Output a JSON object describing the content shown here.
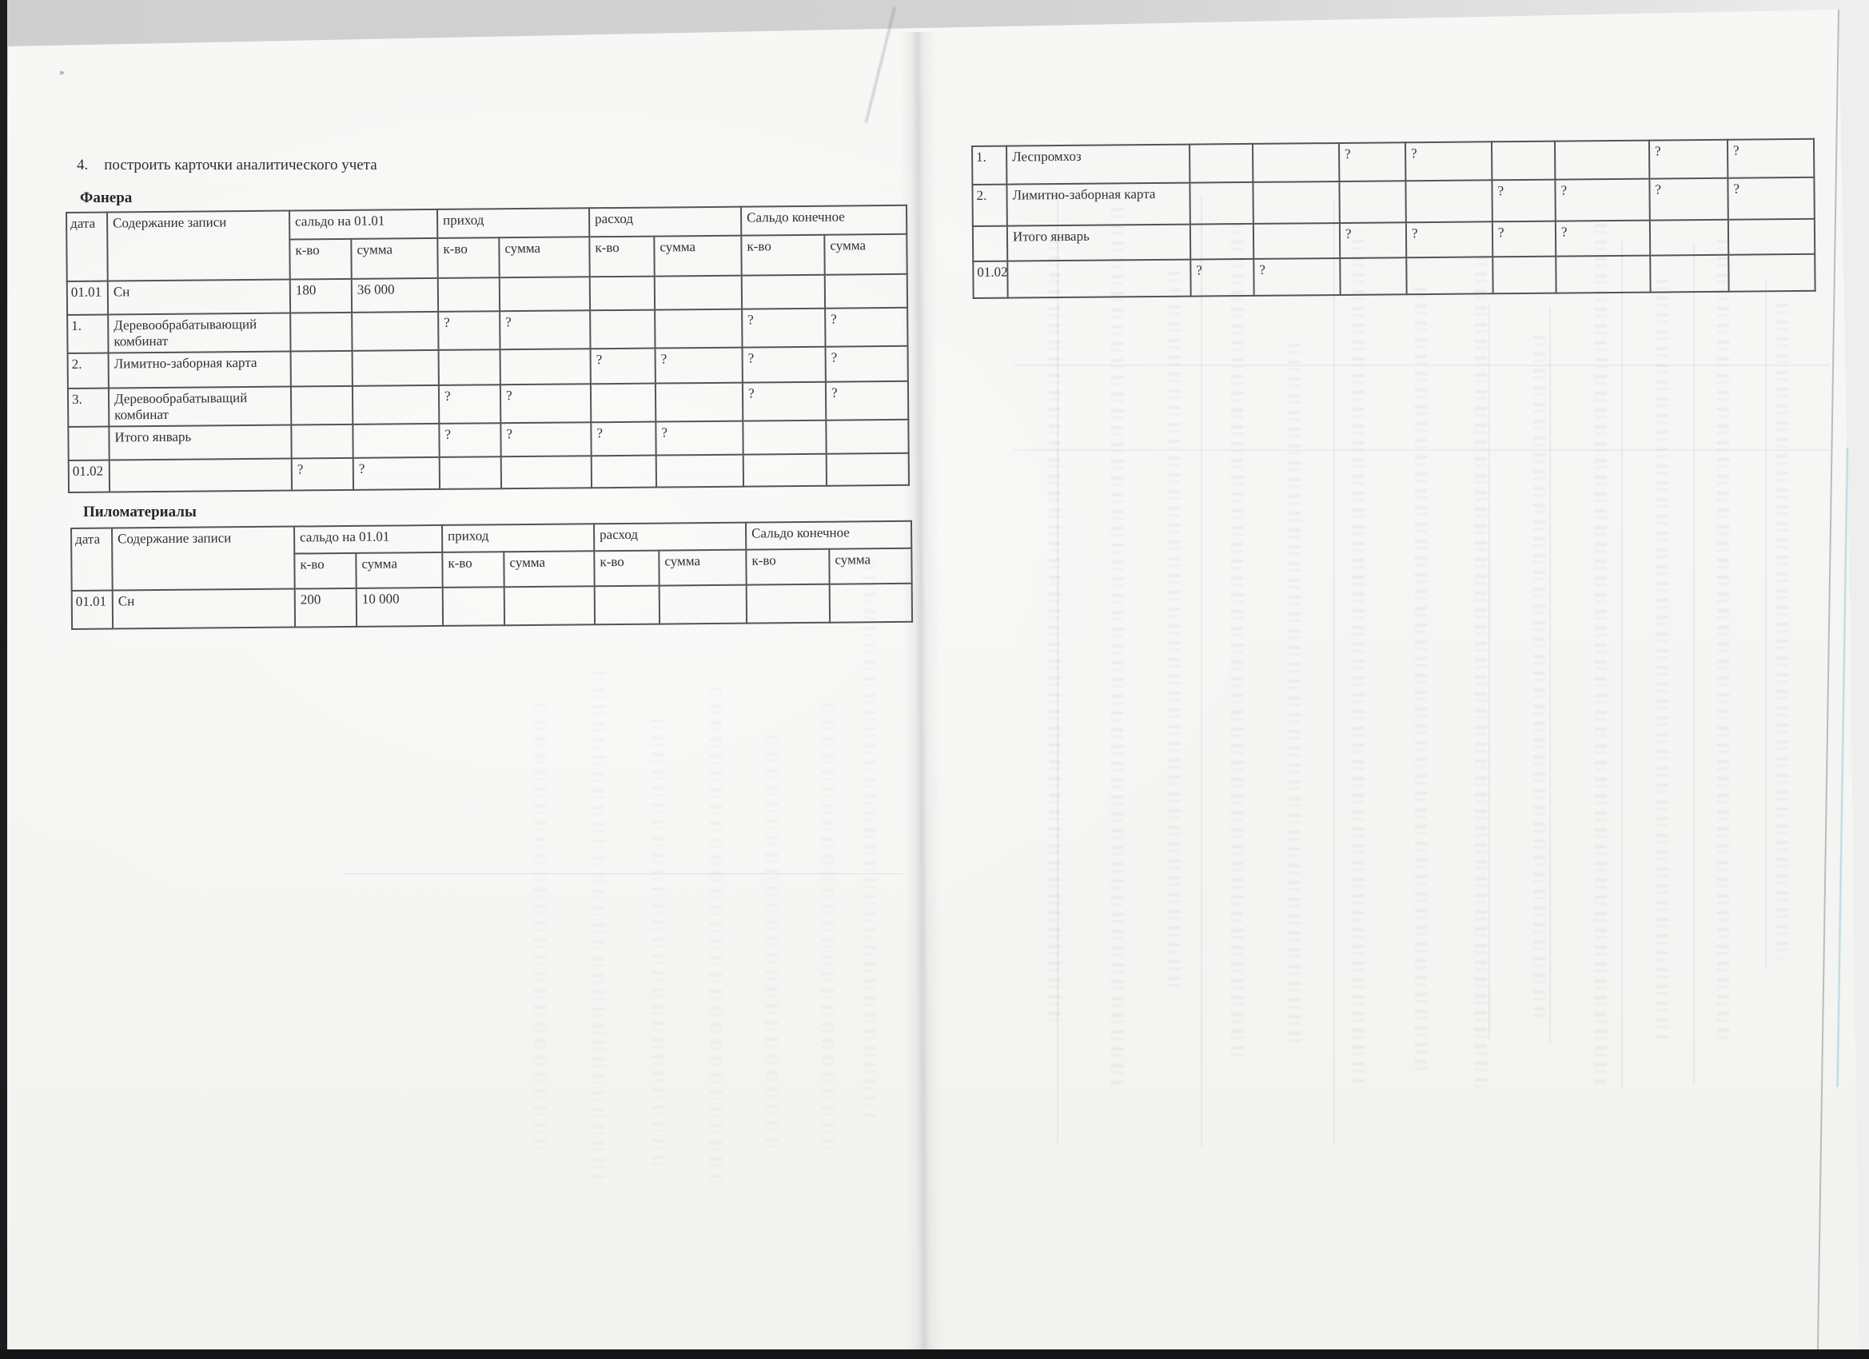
{
  "page": {
    "title_number": "4.",
    "title_text": "построить карточки аналитического учета",
    "stray_mark": "»"
  },
  "shared_headers": {
    "date": "дата",
    "content": "Содержание записи",
    "opening_balance": "сальдо на 01.01",
    "income": "приход",
    "expense": "расход",
    "closing_balance": "Сальдо конечное",
    "qty": "к-во",
    "sum": "сумма"
  },
  "tables": [
    {
      "id": "fanera",
      "label": "Фанера",
      "has_header": true,
      "rows": [
        [
          "01.01",
          "Сн",
          "180",
          "36 000",
          "",
          "",
          "",
          "",
          "",
          ""
        ],
        [
          "1.",
          "Деревообрабатывающий комбинат",
          "",
          "",
          "?",
          "?",
          "",
          "",
          "?",
          "?"
        ],
        [
          "2.",
          "Лимитно-заборная карта",
          "",
          "",
          "",
          "",
          "?",
          "?",
          "?",
          "?"
        ],
        [
          "3.",
          "Деревообрабатыващий комбинат",
          "",
          "",
          "?",
          "?",
          "",
          "",
          "?",
          "?"
        ],
        [
          "",
          "Итого январь",
          "",
          "",
          "?",
          "?",
          "?",
          "?",
          "",
          ""
        ],
        [
          "01.02",
          "",
          "?",
          "?",
          "",
          "",
          "",
          "",
          "",
          ""
        ]
      ]
    },
    {
      "id": "pilomaterialy",
      "label": "Пиломатериалы",
      "has_header": true,
      "rows": [
        [
          "01.01",
          "Сн",
          "200",
          "10 000",
          "",
          "",
          "",
          "",
          "",
          ""
        ]
      ]
    },
    {
      "id": "continuation-card",
      "label": "",
      "has_header": false,
      "rows": [
        [
          "1.",
          "Леспромхоз",
          "",
          "",
          "?",
          "?",
          "",
          "",
          "?",
          "?"
        ],
        [
          "2.",
          "Лимитно-заборная карта",
          "",
          "",
          "",
          "",
          "?",
          "?",
          "?",
          "?"
        ],
        [
          "",
          "Итого январь",
          "",
          "",
          "?",
          "?",
          "?",
          "?",
          "",
          ""
        ],
        [
          "01.02",
          "",
          "?",
          "?",
          "",
          "",
          "",
          "",
          "",
          ""
        ]
      ]
    }
  ]
}
